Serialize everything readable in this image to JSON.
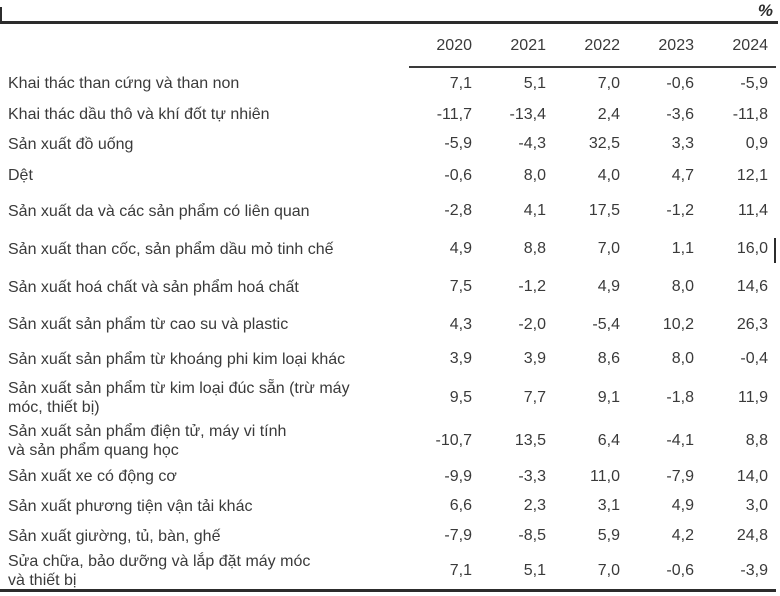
{
  "unit_label": "%",
  "table": {
    "columns": [
      "2020",
      "2021",
      "2022",
      "2023",
      "2024"
    ],
    "rows": [
      {
        "label": "Khai thác than cứng và than non",
        "values": [
          "7,1",
          "5,1",
          "7,0",
          "-0,6",
          "-5,9"
        ]
      },
      {
        "label": "Khai thác dầu thô và khí đốt tự nhiên",
        "values": [
          "-11,7",
          "-13,4",
          "2,4",
          "-3,6",
          "-11,8"
        ]
      },
      {
        "label": "Sản xuất đồ uống",
        "values": [
          "-5,9",
          "-4,3",
          "32,5",
          "3,3",
          "0,9"
        ]
      },
      {
        "label": "Dệt",
        "values": [
          "-0,6",
          "8,0",
          "4,0",
          "4,7",
          "12,1"
        ]
      },
      {
        "label": "Sản xuất da và các sản phẩm có liên quan",
        "values": [
          "-2,8",
          "4,1",
          "17,5",
          "-1,2",
          "11,4"
        ]
      },
      {
        "label": "Sản xuất than cốc, sản phẩm dầu mỏ tinh chế",
        "values": [
          "4,9",
          "8,8",
          "7,0",
          "1,1",
          "16,0"
        ]
      },
      {
        "label": "Sản xuất hoá chất và sản phẩm hoá chất",
        "values": [
          "7,5",
          "-1,2",
          "4,9",
          "8,0",
          "14,6"
        ]
      },
      {
        "label": "Sản xuất sản phẩm từ cao su và plastic",
        "values": [
          "4,3",
          "-2,0",
          "-5,4",
          "10,2",
          "26,3"
        ]
      },
      {
        "label": "Sản xuất sản phẩm từ khoáng phi kim loại khác",
        "values": [
          "3,9",
          "3,9",
          "8,6",
          "8,0",
          "-0,4"
        ]
      },
      {
        "label": "Sản xuất sản phẩm từ kim loại đúc sẵn (trừ máy\nmóc, thiết bị)",
        "values": [
          "9,5",
          "7,7",
          "9,1",
          "-1,8",
          "11,9"
        ]
      },
      {
        "label": "Sản xuất sản phẩm điện tử, máy vi tính\nvà sản phẩm quang học",
        "values": [
          "-10,7",
          "13,5",
          "6,4",
          "-4,1",
          "8,8"
        ]
      },
      {
        "label": "Sản xuất xe có động cơ",
        "values": [
          "-9,9",
          "-3,3",
          "11,0",
          "-7,9",
          "14,0"
        ]
      },
      {
        "label": "Sản xuất phương tiện vận tải khác",
        "values": [
          "6,6",
          "2,3",
          "3,1",
          "4,9",
          "3,0"
        ]
      },
      {
        "label": "Sản xuất giường, tủ, bàn, ghế",
        "values": [
          "-7,9",
          "-8,5",
          "5,9",
          "4,2",
          "24,8"
        ]
      },
      {
        "label": "Sửa chữa, bảo dưỡng và lắp đặt máy móc\nvà thiết bị",
        "values": [
          "7,1",
          "5,1",
          "7,0",
          "-0,6",
          "-3,9"
        ]
      }
    ]
  },
  "colors": {
    "text": "#3a3a3a",
    "rule": "#2c2c2c",
    "background": "#ffffff"
  }
}
